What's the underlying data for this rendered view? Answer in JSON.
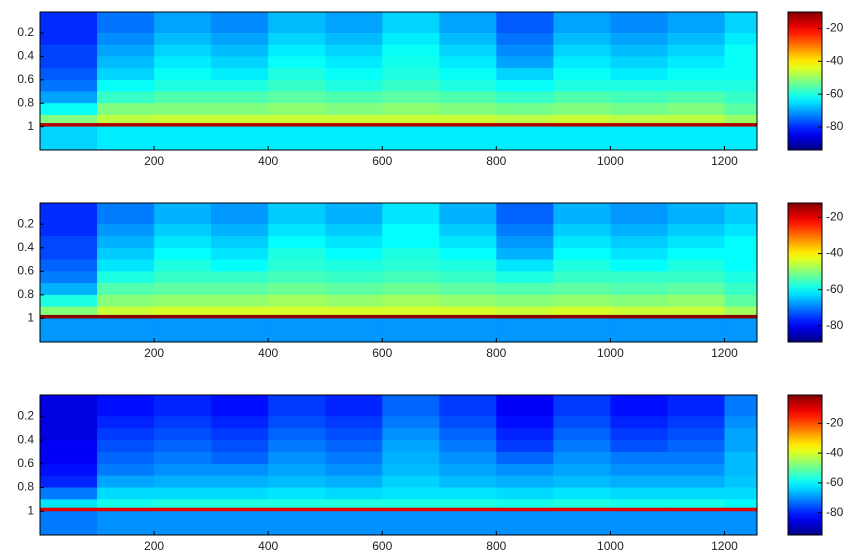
{
  "chart_data": [
    {
      "type": "heatmap",
      "colormap": "jet",
      "x_edges": [
        0,
        100,
        200,
        300,
        400,
        500,
        600,
        700,
        800,
        900,
        1000,
        1100,
        1200,
        1257
      ],
      "y_edges": [
        0.02,
        0.2,
        0.3,
        0.4,
        0.5,
        0.6,
        0.7,
        0.8,
        0.9,
        0.97,
        1.0,
        1.2
      ],
      "z": [
        [
          -80,
          -74,
          -70,
          -72,
          -68,
          -70,
          -66,
          -70,
          -76,
          -70,
          -72,
          -70,
          -66
        ],
        [
          -80,
          -72,
          -68,
          -70,
          -66,
          -68,
          -64,
          -68,
          -74,
          -68,
          -70,
          -68,
          -64
        ],
        [
          -78,
          -70,
          -66,
          -68,
          -64,
          -66,
          -62,
          -66,
          -72,
          -66,
          -68,
          -66,
          -62
        ],
        [
          -78,
          -68,
          -64,
          -66,
          -62,
          -64,
          -61,
          -64,
          -70,
          -64,
          -66,
          -64,
          -62
        ],
        [
          -76,
          -66,
          -62,
          -64,
          -60,
          -62,
          -60,
          -62,
          -66,
          -62,
          -64,
          -62,
          -62
        ],
        [
          -74,
          -62,
          -60,
          -60,
          -58,
          -60,
          -58,
          -60,
          -62,
          -60,
          -60,
          -60,
          -60
        ],
        [
          -70,
          -58,
          -56,
          -56,
          -55,
          -56,
          -55,
          -56,
          -58,
          -56,
          -57,
          -56,
          -58
        ],
        [
          -62,
          -52,
          -52,
          -52,
          -51,
          -52,
          -51,
          -52,
          -53,
          -52,
          -53,
          -52,
          -55
        ],
        [
          -52,
          -47,
          -46,
          -46,
          -46,
          -46,
          -46,
          -46,
          -47,
          -46,
          -47,
          -47,
          -50
        ],
        [
          -14,
          -14,
          -14,
          -14,
          -14,
          -14,
          -14,
          -14,
          -14,
          -14,
          -14,
          -14,
          -14
        ],
        [
          -66,
          -64,
          -64,
          -64,
          -64,
          -64,
          -64,
          -64,
          -64,
          -64,
          -64,
          -64,
          -64
        ]
      ],
      "xlim": [
        0,
        1257
      ],
      "ylim": [
        0.02,
        1.2
      ],
      "xticks": [
        200,
        400,
        600,
        800,
        1000,
        1200
      ],
      "yticks": [
        0.2,
        0.4,
        0.6,
        0.8,
        1
      ],
      "clim": [
        -94,
        -10
      ],
      "cticks": [
        -20,
        -40,
        -60,
        -80
      ]
    },
    {
      "type": "heatmap",
      "colormap": "jet",
      "x_edges": [
        0,
        100,
        200,
        300,
        400,
        500,
        600,
        700,
        800,
        900,
        1000,
        1100,
        1200,
        1257
      ],
      "y_edges": [
        0.02,
        0.2,
        0.3,
        0.4,
        0.5,
        0.6,
        0.7,
        0.8,
        0.9,
        0.97,
        1.0,
        1.2
      ],
      "z": [
        [
          -76,
          -70,
          -66,
          -68,
          -64,
          -66,
          -62,
          -66,
          -72,
          -66,
          -68,
          -66,
          -64
        ],
        [
          -76,
          -68,
          -64,
          -66,
          -62,
          -64,
          -60,
          -64,
          -70,
          -64,
          -66,
          -64,
          -62
        ],
        [
          -74,
          -66,
          -62,
          -64,
          -60,
          -62,
          -60,
          -62,
          -68,
          -62,
          -64,
          -62,
          -60
        ],
        [
          -74,
          -64,
          -60,
          -62,
          -58,
          -60,
          -58,
          -60,
          -66,
          -60,
          -62,
          -60,
          -60
        ],
        [
          -72,
          -62,
          -58,
          -60,
          -57,
          -58,
          -57,
          -58,
          -62,
          -58,
          -60,
          -58,
          -60
        ],
        [
          -70,
          -58,
          -56,
          -56,
          -55,
          -56,
          -55,
          -56,
          -58,
          -56,
          -56,
          -56,
          -58
        ],
        [
          -66,
          -54,
          -53,
          -53,
          -52,
          -53,
          -52,
          -53,
          -54,
          -53,
          -54,
          -53,
          -56
        ],
        [
          -58,
          -50,
          -49,
          -49,
          -48,
          -49,
          -48,
          -49,
          -50,
          -49,
          -50,
          -49,
          -53
        ],
        [
          -50,
          -45,
          -44,
          -44,
          -44,
          -44,
          -44,
          -44,
          -45,
          -44,
          -45,
          -45,
          -48
        ],
        [
          -13,
          -13,
          -13,
          -13,
          -13,
          -13,
          -13,
          -13,
          -13,
          -13,
          -13,
          -13,
          -13
        ],
        [
          -68,
          -68,
          -68,
          -68,
          -68,
          -68,
          -68,
          -68,
          -68,
          -68,
          -68,
          -68,
          -68
        ]
      ],
      "xlim": [
        0,
        1257
      ],
      "ylim": [
        0.02,
        1.2
      ],
      "xticks": [
        200,
        400,
        600,
        800,
        1000,
        1200
      ],
      "yticks": [
        0.2,
        0.4,
        0.6,
        0.8,
        1
      ],
      "clim": [
        -89,
        -12
      ],
      "cticks": [
        -20,
        -40,
        -60,
        -80
      ]
    },
    {
      "type": "heatmap",
      "colormap": "jet",
      "x_edges": [
        0,
        100,
        200,
        300,
        400,
        500,
        600,
        700,
        800,
        900,
        1000,
        1100,
        1200,
        1257
      ],
      "y_edges": [
        0.02,
        0.2,
        0.3,
        0.4,
        0.5,
        0.6,
        0.7,
        0.8,
        0.9,
        0.97,
        1.0,
        1.2
      ],
      "z": [
        [
          -86,
          -82,
          -80,
          -82,
          -78,
          -80,
          -74,
          -78,
          -84,
          -78,
          -82,
          -80,
          -72
        ],
        [
          -86,
          -80,
          -78,
          -80,
          -76,
          -78,
          -72,
          -76,
          -82,
          -76,
          -80,
          -78,
          -70
        ],
        [
          -86,
          -78,
          -76,
          -78,
          -74,
          -76,
          -70,
          -74,
          -80,
          -74,
          -78,
          -76,
          -68
        ],
        [
          -84,
          -76,
          -74,
          -76,
          -72,
          -74,
          -68,
          -72,
          -78,
          -72,
          -76,
          -74,
          -68
        ],
        [
          -84,
          -74,
          -72,
          -74,
          -70,
          -72,
          -67,
          -70,
          -74,
          -70,
          -72,
          -72,
          -66
        ],
        [
          -82,
          -72,
          -70,
          -70,
          -68,
          -70,
          -66,
          -68,
          -70,
          -68,
          -70,
          -70,
          -66
        ],
        [
          -80,
          -68,
          -67,
          -67,
          -66,
          -67,
          -64,
          -66,
          -67,
          -66,
          -67,
          -67,
          -65
        ],
        [
          -72,
          -63,
          -63,
          -63,
          -62,
          -63,
          -62,
          -62,
          -63,
          -62,
          -63,
          -63,
          -63
        ],
        [
          -62,
          -58,
          -57,
          -57,
          -57,
          -57,
          -57,
          -57,
          -58,
          -57,
          -58,
          -58,
          -60
        ],
        [
          -10,
          -10,
          -10,
          -10,
          -10,
          -10,
          -10,
          -10,
          -10,
          -10,
          -10,
          -10,
          -10
        ],
        [
          -72,
          -70,
          -70,
          -70,
          -70,
          -70,
          -70,
          -70,
          -70,
          -70,
          -70,
          -70,
          -70
        ]
      ],
      "xlim": [
        0,
        1257
      ],
      "ylim": [
        0.02,
        1.2
      ],
      "xticks": [
        200,
        400,
        600,
        800,
        1000,
        1200
      ],
      "yticks": [
        0.2,
        0.4,
        0.6,
        0.8,
        1
      ],
      "clim": [
        -95,
        -1
      ],
      "cticks": [
        -20,
        -40,
        -60,
        -80
      ]
    }
  ]
}
